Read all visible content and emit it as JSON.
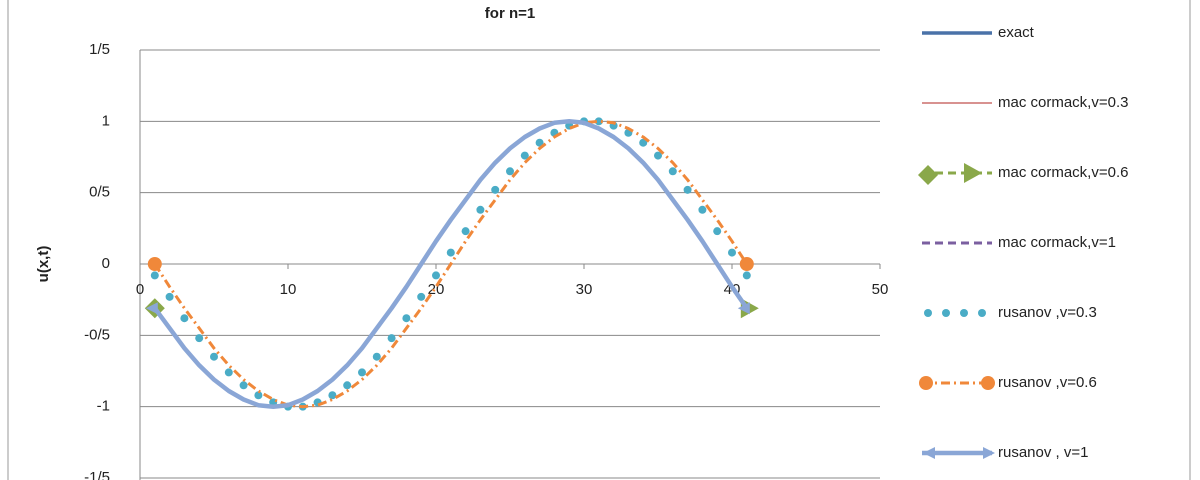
{
  "chart_data": {
    "type": "line",
    "title": "for n=1",
    "y_label": "u(x,t)",
    "x": [
      1,
      2,
      3,
      4,
      5,
      6,
      7,
      8,
      9,
      10,
      11,
      12,
      13,
      14,
      15,
      16,
      17,
      18,
      19,
      20,
      21,
      22,
      23,
      24,
      25,
      26,
      27,
      28,
      29,
      30,
      31,
      32,
      33,
      34,
      35,
      36,
      37,
      38,
      39,
      40,
      41
    ],
    "xlim": [
      0,
      50
    ],
    "xticks": [
      0,
      10,
      20,
      30,
      40,
      50
    ],
    "ylim": [
      -1.5,
      1.5
    ],
    "yticks": [
      {
        "value": -1.5,
        "label": "-1/5"
      },
      -1,
      {
        "value": -0.5,
        "label": "-0/5"
      },
      0,
      {
        "value": 0.5,
        "label": "0/5"
      },
      1,
      {
        "value": 1.5,
        "label": "1/5"
      }
    ],
    "grid": true,
    "series": [
      {
        "name": "exact",
        "color": "#4a72a8",
        "line_style": "solid",
        "values": [
          -0.31,
          -0.45,
          -0.59,
          -0.71,
          -0.81,
          -0.89,
          -0.95,
          -0.99,
          -1,
          -0.99,
          -0.95,
          -0.89,
          -0.81,
          -0.71,
          -0.59,
          -0.45,
          -0.31,
          -0.16,
          0,
          0.16,
          0.31,
          0.45,
          0.59,
          0.71,
          0.81,
          0.89,
          0.95,
          0.99,
          1,
          0.99,
          0.95,
          0.89,
          0.81,
          0.71,
          0.59,
          0.45,
          0.31,
          0.16,
          0,
          -0.16,
          -0.31
        ]
      },
      {
        "name": "mac cormack,v=0.3",
        "color": "#c0504d",
        "line_style": "thin",
        "values": [
          -0.31,
          -0.45,
          -0.59,
          -0.71,
          -0.81,
          -0.89,
          -0.95,
          -0.99,
          -1,
          -0.99,
          -0.95,
          -0.89,
          -0.81,
          -0.71,
          -0.59,
          -0.45,
          -0.31,
          -0.16,
          0,
          0.16,
          0.31,
          0.45,
          0.59,
          0.71,
          0.81,
          0.89,
          0.95,
          0.99,
          1,
          0.99,
          0.95,
          0.89,
          0.81,
          0.71,
          0.59,
          0.45,
          0.31,
          0.16,
          0,
          -0.16,
          -0.31
        ]
      },
      {
        "name": "mac cormack,v=0.6",
        "color": "#8aa84a",
        "line_style": "dashed",
        "marker": "diamond",
        "values": [
          -0.31,
          -0.45,
          -0.59,
          -0.71,
          -0.81,
          -0.89,
          -0.95,
          -0.99,
          -1,
          -0.99,
          -0.95,
          -0.89,
          -0.81,
          -0.71,
          -0.59,
          -0.45,
          -0.31,
          -0.16,
          0,
          0.16,
          0.31,
          0.45,
          0.59,
          0.71,
          0.81,
          0.89,
          0.95,
          0.99,
          1,
          0.99,
          0.95,
          0.89,
          0.81,
          0.71,
          0.59,
          0.45,
          0.31,
          0.16,
          0,
          -0.16,
          -0.31
        ]
      },
      {
        "name": "mac cormack,v=1",
        "color": "#7b5fa0",
        "line_style": "dashed",
        "values": [
          -0.31,
          -0.45,
          -0.59,
          -0.71,
          -0.81,
          -0.89,
          -0.95,
          -0.99,
          -1,
          -0.99,
          -0.95,
          -0.89,
          -0.81,
          -0.71,
          -0.59,
          -0.45,
          -0.31,
          -0.16,
          0,
          0.16,
          0.31,
          0.45,
          0.59,
          0.71,
          0.81,
          0.89,
          0.95,
          0.99,
          1,
          0.99,
          0.95,
          0.89,
          0.81,
          0.71,
          0.59,
          0.45,
          0.31,
          0.16,
          0,
          -0.16,
          -0.31
        ]
      },
      {
        "name": "rusanov ,v=0.3",
        "color": "#4aacc6",
        "line_style": "dots",
        "values": [
          -0.08,
          -0.23,
          -0.38,
          -0.52,
          -0.65,
          -0.76,
          -0.85,
          -0.92,
          -0.97,
          -1,
          -1,
          -0.97,
          -0.92,
          -0.85,
          -0.76,
          -0.65,
          -0.52,
          -0.38,
          -0.23,
          -0.08,
          0.08,
          0.23,
          0.38,
          0.52,
          0.65,
          0.76,
          0.85,
          0.92,
          0.97,
          1,
          1,
          0.97,
          0.92,
          0.85,
          0.76,
          0.65,
          0.52,
          0.38,
          0.23,
          0.08,
          -0.08
        ]
      },
      {
        "name": "rusanov ,v=0.6",
        "color": "#f0883a",
        "line_style": "dashdot",
        "marker": "circle",
        "values": [
          0,
          -0.16,
          -0.31,
          -0.45,
          -0.59,
          -0.71,
          -0.81,
          -0.89,
          -0.95,
          -0.99,
          -1,
          -0.99,
          -0.95,
          -0.89,
          -0.81,
          -0.71,
          -0.59,
          -0.45,
          -0.31,
          -0.16,
          0,
          0.16,
          0.31,
          0.45,
          0.59,
          0.71,
          0.81,
          0.89,
          0.95,
          0.99,
          1,
          0.99,
          0.95,
          0.89,
          0.81,
          0.71,
          0.59,
          0.45,
          0.31,
          0.16,
          0
        ]
      },
      {
        "name": "rusanov , v=1",
        "color": "#8aa6d6",
        "line_style": "thick",
        "marker": "arrow",
        "values": [
          -0.31,
          -0.45,
          -0.59,
          -0.71,
          -0.81,
          -0.89,
          -0.95,
          -0.99,
          -1,
          -0.99,
          -0.95,
          -0.89,
          -0.81,
          -0.71,
          -0.59,
          -0.45,
          -0.31,
          -0.16,
          0,
          0.16,
          0.31,
          0.45,
          0.59,
          0.71,
          0.81,
          0.89,
          0.95,
          0.99,
          1,
          0.99,
          0.95,
          0.89,
          0.81,
          0.71,
          0.59,
          0.45,
          0.31,
          0.16,
          0,
          -0.16,
          -0.31
        ]
      }
    ]
  }
}
